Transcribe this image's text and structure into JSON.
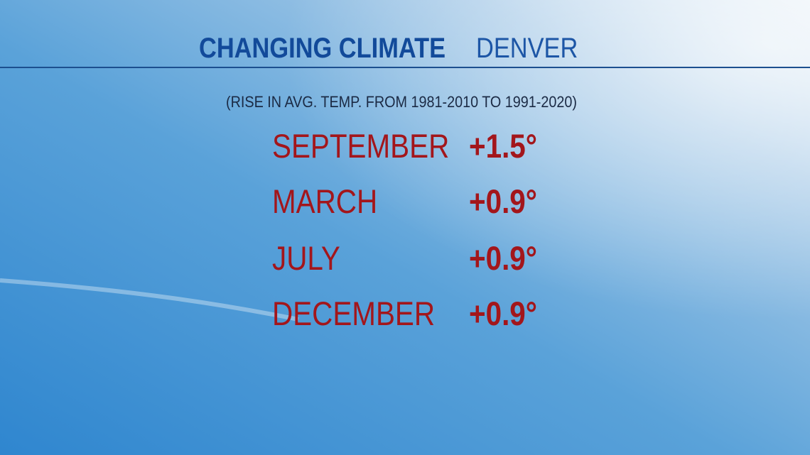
{
  "header": {
    "title": "CHANGING CLIMATE",
    "location": "DENVER"
  },
  "subtitle": "(RISE IN AVG. TEMP. FROM 1981-2010 TO 1991-2020)",
  "rows": [
    [
      "SEPTEMBER",
      "+1.5°"
    ],
    [
      "MARCH",
      "+0.9°"
    ],
    [
      "JULY",
      "+0.9°"
    ],
    [
      "DECEMBER",
      "+0.9°"
    ]
  ]
}
